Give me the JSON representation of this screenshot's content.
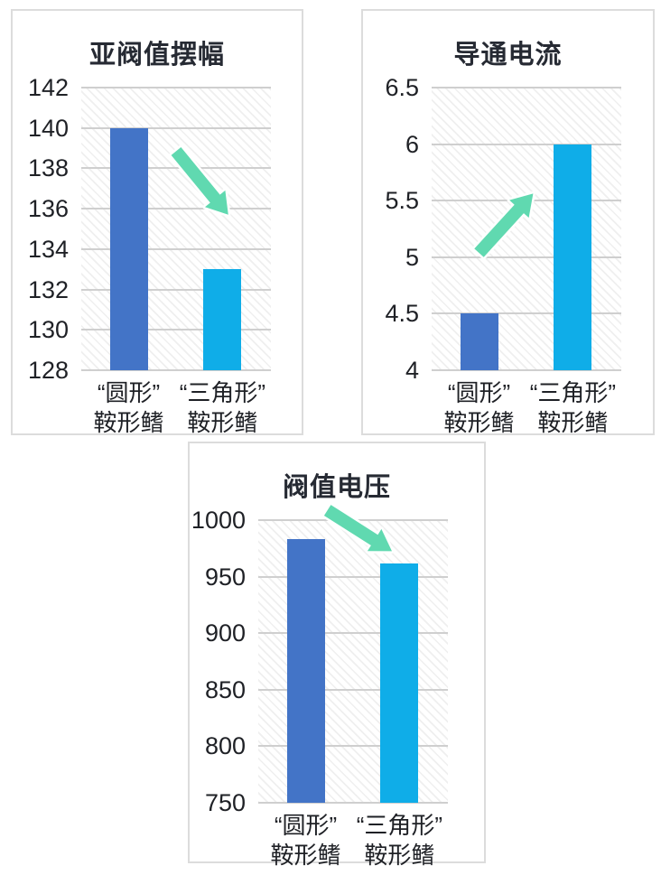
{
  "page": {
    "background": "#ffffff",
    "text_color": "#23262d",
    "gridline_color": "#cfcfcf",
    "panel_border_color": "#dcdcdc",
    "arrow_color": "#60d9b0"
  },
  "chart_data": [
    {
      "type": "bar",
      "title": "亚阀值摆幅",
      "categories": [
        [
          "“圆形”",
          "鞍形鳍"
        ],
        [
          "“三角形”",
          "鞍形鳍"
        ]
      ],
      "series_names": [
        "round-saddle-fin-bar",
        "triangle-saddle-fin-bar"
      ],
      "values": [
        140,
        133
      ],
      "ylim": [
        128,
        142
      ],
      "yticks": [
        142,
        140,
        138,
        136,
        134,
        132,
        130,
        128
      ],
      "bar_colors": [
        "#4374c7",
        "#0fade8"
      ],
      "grid": true,
      "legend": false,
      "annotation": {
        "type": "arrow",
        "direction": "down-right",
        "color": "#60d9b0",
        "from": [
          0.5,
          0.225
        ],
        "to": [
          0.775,
          0.45
        ]
      }
    },
    {
      "type": "bar",
      "title": "导通电流",
      "categories": [
        [
          "“圆形”",
          "鞍形鳍"
        ],
        [
          "“三角形”",
          "鞍形鳍"
        ]
      ],
      "series_names": [
        "round-saddle-fin-bar",
        "triangle-saddle-fin-bar"
      ],
      "values": [
        4.5,
        6
      ],
      "ylim": [
        4,
        6.5
      ],
      "yticks": [
        6.5,
        6,
        5.5,
        5,
        4.5,
        4
      ],
      "bar_colors": [
        "#4374c7",
        "#0fade8"
      ],
      "grid": true,
      "legend": false,
      "annotation": {
        "type": "arrow",
        "direction": "up-right",
        "color": "#60d9b0",
        "from": [
          0.25,
          0.585
        ],
        "to": [
          0.535,
          0.375
        ]
      }
    },
    {
      "type": "bar",
      "title": "阀值电压",
      "categories": [
        [
          "“圆形”",
          "鞍形鳍"
        ],
        [
          "“三角形”",
          "鞍形鳍"
        ]
      ],
      "series_names": [
        "round-saddle-fin-bar",
        "triangle-saddle-fin-bar"
      ],
      "values": [
        983,
        962
      ],
      "ylim": [
        750,
        1000
      ],
      "yticks": [
        1000,
        950,
        900,
        850,
        800,
        750
      ],
      "bar_colors": [
        "#4374c7",
        "#0fade8"
      ],
      "grid": true,
      "legend": false,
      "annotation": {
        "type": "arrow",
        "direction": "down-right",
        "color": "#60d9b0",
        "from": [
          0.365,
          -0.035
        ],
        "to": [
          0.705,
          0.11
        ]
      }
    }
  ]
}
